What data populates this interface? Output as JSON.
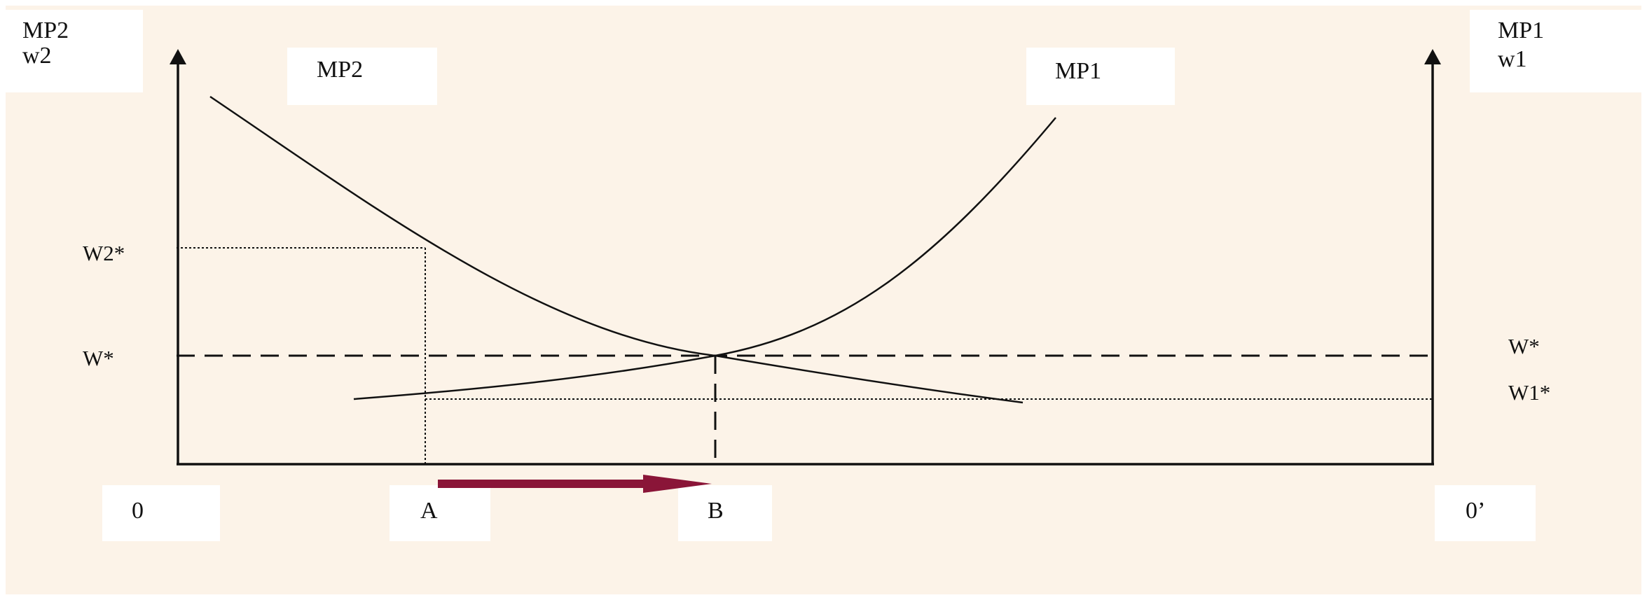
{
  "colors": {
    "background": "#fcf3e8",
    "label_box": "#ffffff",
    "line": "#111111",
    "arrow": "#8a1538"
  },
  "left_axis": {
    "line1": "MP2",
    "line2": "w2"
  },
  "right_axis": {
    "line1": "MP1",
    "line2": "w1"
  },
  "curves": {
    "mp2": "MP2",
    "mp1": "MP1"
  },
  "y_labels": {
    "w2_star_left": "W2*",
    "w_star_left": "W*",
    "w_star_right": "W*",
    "w1_star_right": "W1*"
  },
  "x_labels": {
    "origin_left": "0",
    "point_a": "A",
    "point_b": "B",
    "origin_right": "0’"
  }
}
